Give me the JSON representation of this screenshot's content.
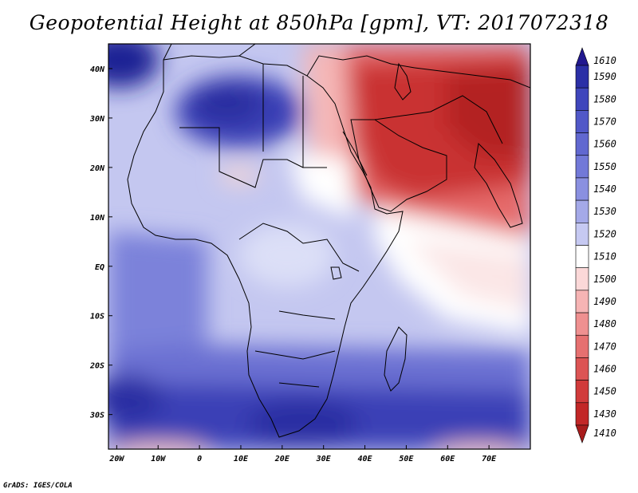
{
  "title": "Geopotential Height at 850hPa [gpm], VT: 2017072318",
  "credit": "GrADS: IGES/COLA",
  "lat_labels": [
    "40N",
    "30N",
    "20N",
    "10N",
    "EQ",
    "10S",
    "20S",
    "30S"
  ],
  "lat_values": [
    40,
    30,
    20,
    10,
    0,
    -10,
    -20,
    -30
  ],
  "lon_labels": [
    "20W",
    "10W",
    "0",
    "10E",
    "20E",
    "30E",
    "40E",
    "50E",
    "60E",
    "70E"
  ],
  "lon_values": [
    -20,
    -10,
    0,
    10,
    20,
    30,
    40,
    50,
    60,
    70
  ],
  "extent": {
    "lon_min": -22,
    "lon_max": 80,
    "lat_min": -37,
    "lat_max": 45
  },
  "colorbar": {
    "levels": [
      "1610",
      "1590",
      "1580",
      "1570",
      "1560",
      "1550",
      "1540",
      "1530",
      "1520",
      "1510",
      "1500",
      "1490",
      "1480",
      "1470",
      "1460",
      "1450",
      "1430",
      "1410"
    ],
    "colors": [
      "#21188f",
      "#2b2fa6",
      "#3f46bc",
      "#5158c8",
      "#6168d0",
      "#7279d8",
      "#8a90e0",
      "#a4a9e8",
      "#c6c9f2",
      "#ffffff",
      "#fbd8d8",
      "#f6b4b4",
      "#ef9090",
      "#e67070",
      "#dc5454",
      "#d13b3b",
      "#c22727",
      "#a81c1c"
    ]
  }
}
